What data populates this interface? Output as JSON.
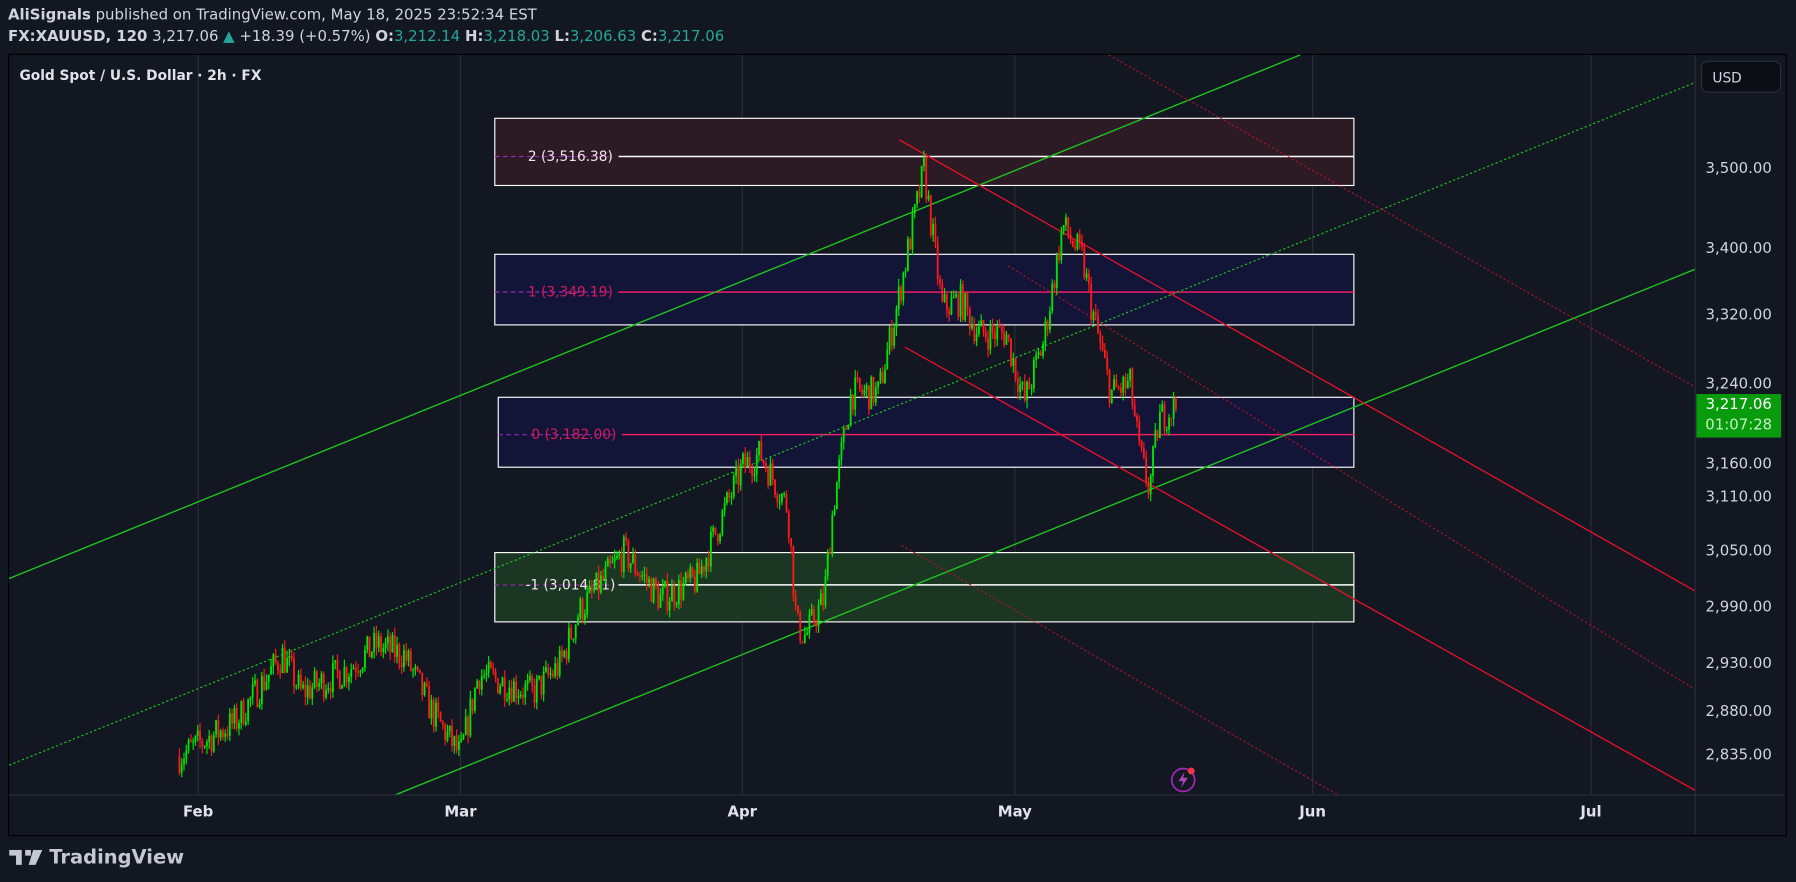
{
  "header": {
    "author": "AliSignals",
    "published": "published on TradingView.com, May 18, 2025 23:52:34 EST",
    "symbol": "FX:XAUUSD, 120",
    "last": "3,217.06",
    "change": "+18.39 (+0.57%)",
    "open_label": "O:",
    "open": "3,212.14",
    "high_label": "H:",
    "high": "3,218.03",
    "low_label": "L:",
    "low": "3,206.63",
    "close_label": "C:",
    "close": "3,217.06"
  },
  "chart_title": "Gold Spot / U.S. Dollar · 2h · FX",
  "currency_button": "USD",
  "last_price_label": {
    "price": "3,217.06",
    "countdown": "01:07:28",
    "color": "#089c0c"
  },
  "brand": "TradingView",
  "chart_data": {
    "type": "candlestick",
    "title": "Gold Spot / U.S. Dollar · 2h · FX",
    "y_scale": "log",
    "ylim": [
      2800,
      3600
    ],
    "y_ticks": [
      "3,500.00",
      "3,400.00",
      "3,320.00",
      "3,240.00",
      "3,160.00",
      "3,110.00",
      "3,050.00",
      "2,990.00",
      "2,930.00",
      "2,880.00",
      "2,835.00"
    ],
    "y_tick_values": [
      3500,
      3400,
      3320,
      3240,
      3160,
      3110,
      3050,
      2990,
      2930,
      2880,
      2835
    ],
    "x_ticks": [
      "Feb",
      "Mar",
      "Apr",
      "May",
      "Jun",
      "Jul"
    ],
    "x_range": [
      "2025-01-29",
      "2025-07-12"
    ],
    "price_path": [
      [
        "2025-01-30",
        2835
      ],
      [
        "2025-02-05",
        2870
      ],
      [
        "2025-02-10",
        2940
      ],
      [
        "2025-02-12",
        2900
      ],
      [
        "2025-02-17",
        2925
      ],
      [
        "2025-02-20",
        2950
      ],
      [
        "2025-02-23",
        2940
      ],
      [
        "2025-02-26",
        2880
      ],
      [
        "2025-03-01",
        2835
      ],
      [
        "2025-03-03",
        2920
      ],
      [
        "2025-03-09",
        2900
      ],
      [
        "2025-03-12",
        2930
      ],
      [
        "2025-03-14",
        2985
      ],
      [
        "2025-03-19",
        3050
      ],
      [
        "2025-03-23",
        3000
      ],
      [
        "2025-03-27",
        3020
      ],
      [
        "2025-04-01",
        3145
      ],
      [
        "2025-04-03",
        3160
      ],
      [
        "2025-04-06",
        3100
      ],
      [
        "2025-04-07",
        2970
      ],
      [
        "2025-04-08",
        2960
      ],
      [
        "2025-04-10",
        3000
      ],
      [
        "2025-04-11",
        3100
      ],
      [
        "2025-04-13",
        3230
      ],
      [
        "2025-04-16",
        3230
      ],
      [
        "2025-04-18",
        3330
      ],
      [
        "2025-04-21",
        3500
      ],
      [
        "2025-04-23",
        3330
      ],
      [
        "2025-04-25",
        3340
      ],
      [
        "2025-04-27",
        3300
      ],
      [
        "2025-04-30",
        3300
      ],
      [
        "2025-05-02",
        3220
      ],
      [
        "2025-05-04",
        3290
      ],
      [
        "2025-05-06",
        3430
      ],
      [
        "2025-05-08",
        3390
      ],
      [
        "2025-05-09",
        3330
      ],
      [
        "2025-05-11",
        3230
      ],
      [
        "2025-05-13",
        3240
      ],
      [
        "2025-05-14",
        3160
      ],
      [
        "2025-05-15",
        3120
      ],
      [
        "2025-05-16",
        3200
      ],
      [
        "2025-05-18",
        3217.06
      ]
    ],
    "fib_levels": [
      {
        "label": "2 (3,516.38)",
        "value": 3516.38,
        "zone": [
          3480,
          3565
        ],
        "fill": "#2c1a24",
        "line_color": "#ffffff"
      },
      {
        "label": "1 (3,349.19)",
        "value": 3349.19,
        "zone": [
          3310,
          3395
        ],
        "fill": "#131538",
        "line_color": "#e91e63"
      },
      {
        "label": "0 (3,182.00)",
        "value": 3182.0,
        "zone": [
          3145,
          3225
        ],
        "fill": "#131538",
        "line_color": "#e91e63"
      },
      {
        "label": "-1 (3,014.81)",
        "value": 3014.81,
        "zone": [
          2975,
          3050
        ],
        "fill": "#1b3623",
        "line_color": "#ffffff"
      }
    ],
    "colors": {
      "up": "#00e600",
      "down": "#ff1a1a",
      "channel_up": "#1ec51e",
      "channel_down": "#e0102a"
    }
  }
}
